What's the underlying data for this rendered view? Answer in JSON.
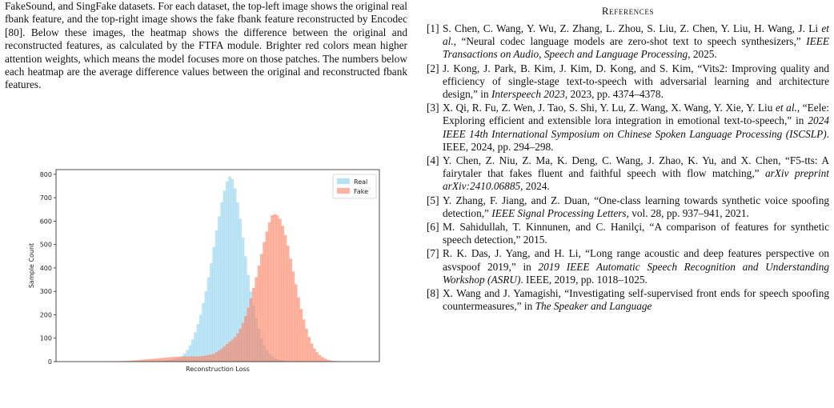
{
  "text_paragraph": "FakeSound, and SingFake datasets. For each dataset, the top-left image shows the original real fbank feature, and the top-right image shows the fake fbank feature reconstructed by Encodec [80]. Below these images, the heatmap shows the difference between the original and reconstructed features, as calculated by the FTFA module. Brighter red colors mean higher attention weights, which means the model focuses more on those patches. The numbers below each heatmap are the average difference values between the original and reconstructed fbank features.",
  "references_heading": "References",
  "references": [
    {
      "num": "[1]",
      "pre": "S. Chen, C. Wang, Y. Wu, Z. Zhang, L. Zhou, S. Liu, Z. Chen, Y. Liu, H. Wang, J. Li ",
      "et_al": "et al.",
      "mid": ", “Neural codec language models are zero-shot text to speech synthesizers,” ",
      "venue": "IEEE Transactions on Audio, Speech and Language Processing",
      "post": ", 2025."
    },
    {
      "num": "[2]",
      "pre": "J. Kong, J. Park, B. Kim, J. Kim, D. Kong, and S. Kim, “Vits2: Improving quality and efficiency of single-stage text-to-speech with adversarial learning and architecture design,” in ",
      "et_al": "",
      "mid": "",
      "venue": "Interspeech 2023",
      "post": ", 2023, pp. 4374–4378."
    },
    {
      "num": "[3]",
      "pre": "X. Qi, R. Fu, Z. Wen, J. Tao, S. Shi, Y. Lu, Z. Wang, X. Wang, Y. Xie, Y. Liu ",
      "et_al": "et al.",
      "mid": ", “Eele: Exploring efficient and extensible lora integration in emotional text-to-speech,” in ",
      "venue": "2024 IEEE 14th International Symposium on Chinese Spoken Language Processing (ISCSLP)",
      "post": ".   IEEE, 2024, pp. 294–298."
    },
    {
      "num": "[4]",
      "pre": "Y. Chen, Z. Niu, Z. Ma, K. Deng, C. Wang, J. Zhao, K. Yu, and X. Chen, “F5-tts: A fairytaler that fakes fluent and faithful speech with flow matching,” ",
      "et_al": "",
      "mid": "",
      "venue": "arXiv preprint arXiv:2410.06885",
      "post": ", 2024."
    },
    {
      "num": "[5]",
      "pre": "Y. Zhang, F. Jiang, and Z. Duan, “One-class learning towards synthetic voice spoofing detection,” ",
      "et_al": "",
      "mid": "",
      "venue": "IEEE Signal Processing Letters",
      "post": ", vol. 28, pp. 937–941, 2021."
    },
    {
      "num": "[6]",
      "pre": "M. Sahidullah, T. Kinnunen, and C. Hanilçi, “A comparison of features for synthetic speech detection,” 2015.",
      "et_al": "",
      "mid": "",
      "venue": "",
      "post": ""
    },
    {
      "num": "[7]",
      "pre": "R. K. Das, J. Yang, and H. Li, “Long range acoustic and deep features perspective on asvspoof 2019,” in ",
      "et_al": "",
      "mid": "",
      "venue": "2019 IEEE Automatic Speech Recognition and Understanding Workshop (ASRU)",
      "post": ".   IEEE, 2019, pp. 1018–1025."
    },
    {
      "num": "[8]",
      "pre": "X. Wang and J. Yamagishi, “Investigating self-supervised front ends for speech spoofing countermeasures,” in ",
      "et_al": "",
      "mid": "",
      "venue": "The Speaker and Language",
      "post": ""
    }
  ],
  "chart_data": {
    "type": "bar",
    "xlabel": "Reconstruction Loss",
    "ylabel": "Sample Count",
    "ylim": [
      0,
      820
    ],
    "yticks": [
      0,
      100,
      200,
      300,
      400,
      500,
      600,
      700,
      800
    ],
    "legend_position": "top-right",
    "series": [
      {
        "name": "Real",
        "color": "#87ceeb",
        "values": [
          0,
          0,
          0,
          0,
          0,
          0,
          0,
          0,
          0,
          0,
          0,
          0,
          0,
          0,
          0,
          0,
          0,
          0,
          0,
          0,
          0,
          0,
          0,
          0,
          0,
          0,
          0,
          0,
          0,
          1,
          1,
          2,
          2,
          3,
          4,
          5,
          6,
          8,
          10,
          13,
          18,
          25,
          35,
          50,
          70,
          95,
          125,
          160,
          200,
          250,
          300,
          360,
          420,
          490,
          560,
          620,
          680,
          730,
          770,
          790,
          780,
          740,
          680,
          610,
          530,
          450,
          370,
          300,
          240,
          185,
          140,
          100,
          70,
          50,
          35,
          25,
          16,
          10,
          6,
          4,
          2,
          1,
          1,
          0,
          0,
          0,
          0,
          0,
          0,
          0,
          0,
          0,
          0,
          0,
          0,
          0,
          0,
          0,
          0,
          0,
          0,
          0,
          0,
          0,
          0,
          0,
          0,
          0,
          0,
          0
        ]
      },
      {
        "name": "Fake",
        "color": "#fa8060",
        "values": [
          0,
          0,
          0,
          0,
          0,
          0,
          0,
          0,
          0,
          0,
          0,
          0,
          0,
          0,
          1,
          1,
          1,
          2,
          2,
          2,
          3,
          3,
          4,
          5,
          6,
          7,
          8,
          9,
          10,
          11,
          12,
          13,
          14,
          15,
          16,
          17,
          18,
          19,
          20,
          20,
          21,
          21,
          22,
          22,
          22,
          23,
          22,
          22,
          23,
          24,
          26,
          28,
          30,
          34,
          40,
          47,
          55,
          65,
          75,
          85,
          95,
          105,
          120,
          140,
          165,
          195,
          230,
          270,
          315,
          360,
          410,
          460,
          510,
          555,
          595,
          625,
          630,
          625,
          610,
          580,
          540,
          495,
          440,
          385,
          330,
          275,
          225,
          180,
          140,
          105,
          78,
          56,
          40,
          28,
          19,
          13,
          8,
          5,
          3,
          2,
          1,
          1,
          0,
          0,
          0,
          0,
          0,
          0,
          0
        ]
      }
    ]
  }
}
